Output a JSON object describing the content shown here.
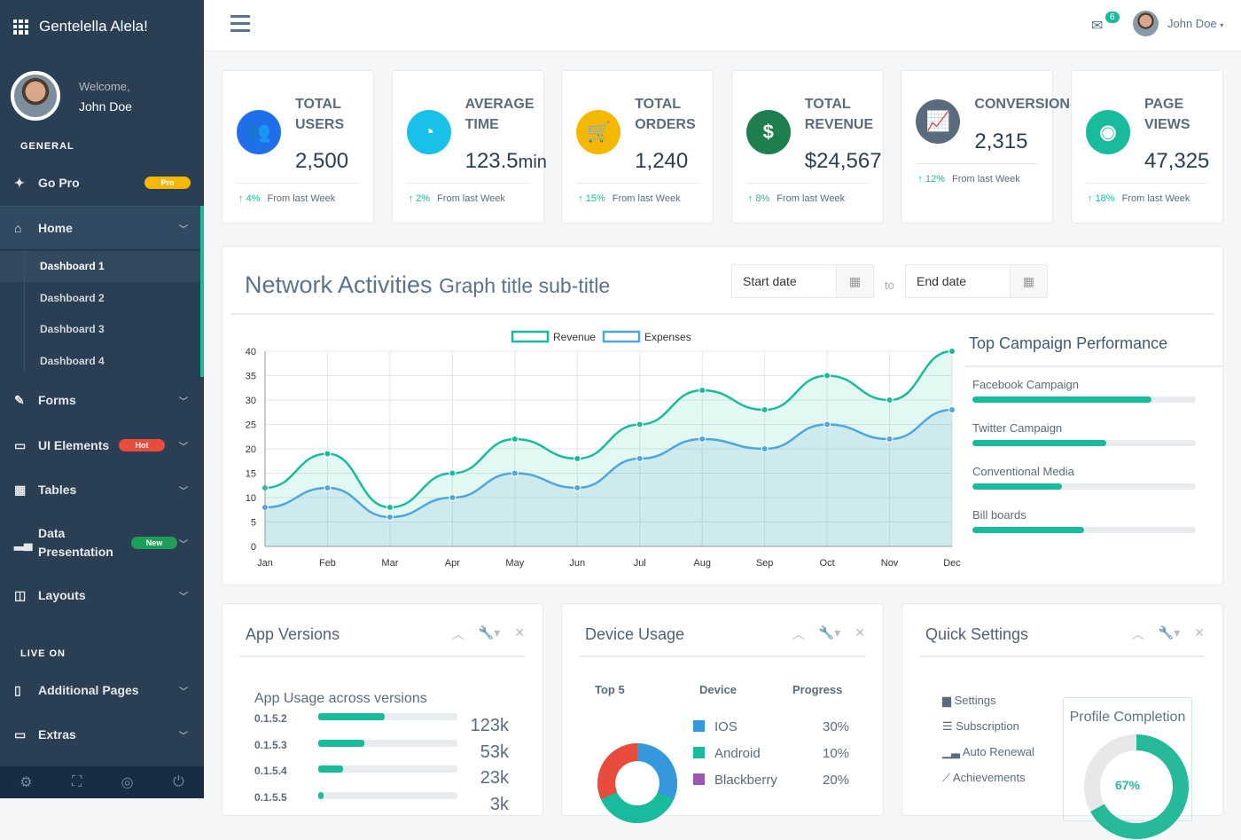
{
  "brand": "Gentelella Alela!",
  "profile": {
    "welcome": "Welcome,",
    "name": "John Doe"
  },
  "sidebar": {
    "general": "GENERAL",
    "live_on": "LIVE ON",
    "go_pro": {
      "label": "Go Pro",
      "badge": "Pro"
    },
    "items": [
      {
        "label": "Home"
      },
      {
        "label": "Forms"
      },
      {
        "label": "UI Elements",
        "badge": "Hot"
      },
      {
        "label": "Tables"
      },
      {
        "label": "Data Presentation",
        "badge": "New"
      },
      {
        "label": "Layouts"
      },
      {
        "label": "Additional Pages"
      },
      {
        "label": "Extras"
      }
    ],
    "home_sub": [
      "Dashboard 1",
      "Dashboard 2",
      "Dashboard 3",
      "Dashboard 4"
    ]
  },
  "topbar": {
    "mail_count": "6",
    "user": "John Doe"
  },
  "stats": [
    {
      "label": "TOTAL USERS",
      "value": "2,500",
      "change": "4%",
      "note": "From last Week",
      "color": "#1f6feb",
      "icon": "users-icon"
    },
    {
      "label": "AVERAGE TIME",
      "value": "123.5",
      "unit": "min",
      "change": "2%",
      "note": "From last Week",
      "color": "#17c1e8",
      "icon": "clock-icon"
    },
    {
      "label": "TOTAL ORDERS",
      "value": "1,240",
      "change": "15%",
      "note": "From last Week",
      "color": "#f5b800",
      "icon": "cart-icon"
    },
    {
      "label": "TOTAL REVENUE",
      "value": "$24,567",
      "change": "8%",
      "note": "From last Week",
      "color": "#1e7e4e",
      "icon": "dollar-icon"
    },
    {
      "label": "CONVERSIONS",
      "value": "2,315",
      "change": "12%",
      "note": "From last Week",
      "color": "#5a6b7d",
      "icon": "line-chart-icon"
    },
    {
      "label": "PAGE VIEWS",
      "value": "47,325",
      "change": "18%",
      "note": "From last Week",
      "color": "#1abb9c",
      "icon": "eye-icon"
    }
  ],
  "network": {
    "title": "Network Activities",
    "subtitle": "Graph title sub-title",
    "start_placeholder": "Start date",
    "to": "to",
    "end_placeholder": "End date"
  },
  "chart_data": {
    "type": "line",
    "categories": [
      "Jan",
      "Feb",
      "Mar",
      "Apr",
      "May",
      "Jun",
      "Jul",
      "Aug",
      "Sep",
      "Oct",
      "Nov",
      "Dec"
    ],
    "series": [
      {
        "name": "Revenue",
        "values": [
          12,
          19,
          8,
          15,
          22,
          18,
          25,
          32,
          28,
          35,
          30,
          40
        ],
        "color": "#1abb9c"
      },
      {
        "name": "Expenses",
        "values": [
          8,
          12,
          6,
          10,
          15,
          12,
          18,
          22,
          20,
          25,
          22,
          28
        ],
        "color": "#4ea6dc"
      }
    ],
    "ylim": [
      0,
      40
    ],
    "yticks": [
      0,
      5,
      10,
      15,
      20,
      25,
      30,
      35,
      40
    ],
    "grid": true,
    "legend": "top"
  },
  "campaign": {
    "title": "Top Campaign Performance",
    "items": [
      {
        "label": "Facebook Campaign",
        "pct": 80
      },
      {
        "label": "Twitter Campaign",
        "pct": 60
      },
      {
        "label": "Conventional Media",
        "pct": 40
      },
      {
        "label": "Bill boards",
        "pct": 50
      }
    ]
  },
  "app_versions": {
    "title": "App Versions",
    "subtitle": "App Usage across versions",
    "rows": [
      {
        "v": "0.1.5.2",
        "val": "123k",
        "pct": 48
      },
      {
        "v": "0.1.5.3",
        "val": "53k",
        "pct": 33
      },
      {
        "v": "0.1.5.4",
        "val": "23k",
        "pct": 18
      },
      {
        "v": "0.1.5.5",
        "val": "3k",
        "pct": 4
      }
    ]
  },
  "device": {
    "title": "Device Usage",
    "headers": [
      "Top 5",
      "Device",
      "Progress"
    ],
    "rows": [
      {
        "name": "IOS",
        "pct": "30%",
        "color": "#3498db"
      },
      {
        "name": "Android",
        "pct": "10%",
        "color": "#1abb9c"
      },
      {
        "name": "Blackberry",
        "pct": "20%",
        "color": "#9b59b6"
      }
    ]
  },
  "quick": {
    "title": "Quick Settings",
    "items": [
      "Settings",
      "Subscription",
      "Auto Renewal",
      "Achievements"
    ],
    "profile_title": "Profile Completion",
    "profile_pct": "67%",
    "profile_value": 67
  }
}
